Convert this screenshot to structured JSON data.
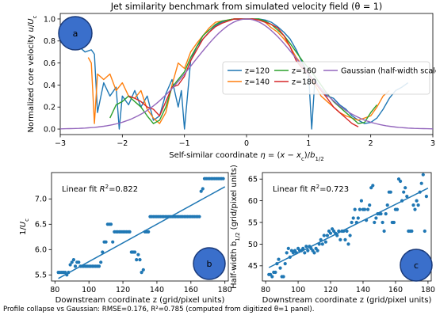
{
  "caption": "Profile collapse vs Gaussian: RMSE=0.176, R²=0.785 (computed from digitized θ=1 panel).",
  "colors": {
    "z120": "#1f77b4",
    "z140": "#ff7f0e",
    "z160": "#2ca02c",
    "z180": "#d62728",
    "gaussian": "#9467bd",
    "scatter": "#1f77b4",
    "badge_fill": "#3a6fcb",
    "badge_stroke": "#1a3a7a"
  },
  "chart_data": [
    {
      "type": "line",
      "title": "Jet similarity benchmark from simulated velocity field (θ = 1)",
      "xlabel": "Self-similar coordinate η = (x − x_c)/b_1/2",
      "ylabel": "Normalized core velocity u/U_c",
      "xlim": [
        -3.0,
        3.0
      ],
      "ylim": [
        -0.05,
        1.05
      ],
      "xticks": [
        "−3",
        "−2",
        "−1",
        "0",
        "1",
        "2",
        "3"
      ],
      "yticks": [
        "0.0",
        "0.2",
        "0.4",
        "0.6",
        "0.8",
        "1.0"
      ],
      "badge": "a",
      "legend": {
        "placement": "center-right",
        "entries": [
          "z=120",
          "z=140",
          "z=160",
          "z=180",
          "Gaussian (half-width scaled)"
        ]
      },
      "series": [
        {
          "name": "z=120",
          "color": "#1f77b4",
          "x": [
            -2.7,
            -2.6,
            -2.5,
            -2.45,
            -2.4,
            -2.3,
            -2.2,
            -2.1,
            -2.05,
            -2.0,
            -1.9,
            -1.8,
            -1.7,
            -1.6,
            -1.5,
            -1.4,
            -1.3,
            -1.2,
            -1.1,
            -1.05,
            -1.0,
            -0.9,
            -0.8,
            -0.7,
            -0.6,
            -0.5,
            -0.4,
            -0.3,
            -0.2,
            -0.1,
            0,
            0.1,
            0.2,
            0.3,
            0.4,
            0.5,
            0.6,
            0.7,
            0.8,
            0.9,
            1.0,
            1.05,
            1.1,
            1.2,
            1.3,
            1.4,
            1.5,
            1.6,
            1.7,
            1.8,
            1.9,
            2.0,
            2.1,
            2.2,
            2.3,
            2.4,
            2.5,
            2.6
          ],
          "y": [
            0.75,
            0.7,
            0.72,
            0.68,
            0.15,
            0.42,
            0.3,
            0.38,
            0.0,
            0.3,
            0.22,
            0.35,
            0.2,
            0.3,
            0.08,
            0.12,
            0.32,
            0.45,
            0.2,
            0.35,
            0.0,
            0.62,
            0.75,
            0.82,
            0.88,
            0.94,
            0.97,
            0.99,
            1.0,
            1.0,
            1.0,
            1.0,
            1.0,
            0.99,
            0.97,
            0.93,
            0.88,
            0.82,
            0.72,
            0.6,
            0.5,
            0.0,
            0.45,
            0.35,
            0.3,
            0.28,
            0.22,
            0.18,
            0.12,
            0.08,
            0.05,
            0.06,
            0.1,
            0.18,
            0.28,
            0.35,
            0.38,
            0.42
          ]
        },
        {
          "name": "z=140",
          "color": "#ff7f0e",
          "x": [
            -2.55,
            -2.5,
            -2.45,
            -2.4,
            -2.3,
            -2.2,
            -2.1,
            -2.0,
            -1.9,
            -1.8,
            -1.7,
            -1.6,
            -1.5,
            -1.4,
            -1.3,
            -1.2,
            -1.1,
            -1.0,
            -0.9,
            -0.8,
            -0.7,
            -0.6,
            -0.5,
            -0.4,
            -0.3,
            -0.2,
            -0.1,
            0,
            0.1,
            0.2,
            0.3,
            0.4,
            0.5,
            0.6,
            0.7,
            0.8,
            0.9,
            1.0,
            1.1,
            1.2,
            1.3,
            1.4,
            1.5,
            1.6,
            1.7,
            1.8,
            1.9,
            2.0,
            2.1,
            2.2,
            2.3
          ],
          "y": [
            0.65,
            0.6,
            0.05,
            0.5,
            0.45,
            0.5,
            0.35,
            0.42,
            0.3,
            0.28,
            0.35,
            0.18,
            0.1,
            0.05,
            0.15,
            0.4,
            0.6,
            0.55,
            0.7,
            0.78,
            0.85,
            0.92,
            0.97,
            0.98,
            0.99,
            1.0,
            1.0,
            1.0,
            1.0,
            0.99,
            0.97,
            0.92,
            0.88,
            0.82,
            0.75,
            0.65,
            0.58,
            0.5,
            0.4,
            0.3,
            0.25,
            0.2,
            0.15,
            0.12,
            0.1,
            0.08,
            0.1,
            0.12,
            0.2,
            0.3,
            0.35
          ]
        },
        {
          "name": "z=160",
          "color": "#2ca02c",
          "x": [
            -2.2,
            -2.1,
            -2.0,
            -1.9,
            -1.8,
            -1.7,
            -1.6,
            -1.5,
            -1.4,
            -1.3,
            -1.2,
            -1.1,
            -1.0,
            -0.9,
            -0.8,
            -0.7,
            -0.6,
            -0.5,
            -0.4,
            -0.3,
            -0.2,
            -0.1,
            0,
            0.1,
            0.2,
            0.3,
            0.4,
            0.5,
            0.6,
            0.7,
            0.8,
            0.9,
            1.0,
            1.1,
            1.2,
            1.3,
            1.4,
            1.5,
            1.6,
            1.7,
            1.8,
            1.9,
            2.0,
            2.1
          ],
          "y": [
            0.1,
            0.22,
            0.25,
            0.3,
            0.25,
            0.2,
            0.12,
            0.05,
            0.08,
            0.2,
            0.38,
            0.45,
            0.52,
            0.65,
            0.75,
            0.85,
            0.9,
            0.95,
            0.98,
            0.99,
            1.0,
            1.0,
            1.0,
            1.0,
            1.0,
            0.98,
            0.95,
            0.9,
            0.85,
            0.78,
            0.7,
            0.62,
            0.55,
            0.48,
            0.4,
            0.32,
            0.25,
            0.2,
            0.15,
            0.1,
            0.05,
            0.06,
            0.15,
            0.22
          ]
        },
        {
          "name": "z=180",
          "color": "#d62728",
          "x": [
            -1.9,
            -1.8,
            -1.7,
            -1.6,
            -1.5,
            -1.4,
            -1.3,
            -1.2,
            -1.1,
            -1.0,
            -0.9,
            -0.8,
            -0.7,
            -0.6,
            -0.5,
            -0.4,
            -0.3,
            -0.2,
            -0.1,
            0,
            0.1,
            0.2,
            0.3,
            0.4,
            0.5,
            0.6,
            0.7,
            0.8,
            0.9,
            1.0,
            1.1,
            1.2,
            1.3,
            1.4,
            1.5,
            1.6,
            1.7,
            1.8
          ],
          "y": [
            0.3,
            0.28,
            0.25,
            0.2,
            0.18,
            0.12,
            0.25,
            0.38,
            0.4,
            0.48,
            0.62,
            0.72,
            0.82,
            0.88,
            0.93,
            0.96,
            0.98,
            1.0,
            1.0,
            1.0,
            1.0,
            0.99,
            0.97,
            0.95,
            0.92,
            0.85,
            0.75,
            0.62,
            0.55,
            0.5,
            0.42,
            0.35,
            0.28,
            0.2,
            0.15,
            0.1,
            0.05,
            0.02
          ]
        },
        {
          "name": "Gaussian (half-width scaled)",
          "color": "#9467bd",
          "function": "gaussian"
        }
      ]
    },
    {
      "type": "scatter",
      "xlabel": "Downstream coordinate z (grid/pixel units)",
      "ylabel": "1/U_c",
      "xlim": [
        78,
        182
      ],
      "ylim": [
        5.38,
        7.52
      ],
      "xticks": [
        80,
        100,
        120,
        140,
        160,
        180
      ],
      "yticks": [
        "5.5",
        "6.0",
        "6.5",
        "7.0"
      ],
      "annotation": "Linear fit R²=0.822",
      "badge": "b",
      "fit": {
        "x": [
          82,
          180
        ],
        "y": [
          5.43,
          7.24
        ]
      },
      "x": [
        82,
        83,
        84,
        85,
        86,
        87,
        88,
        89,
        90,
        91,
        92,
        93,
        94,
        95,
        96,
        97,
        98,
        99,
        100,
        101,
        102,
        103,
        104,
        105,
        106,
        107,
        108,
        109,
        110,
        111,
        112,
        113,
        114,
        115,
        116,
        117,
        118,
        119,
        120,
        121,
        122,
        123,
        124,
        125,
        126,
        127,
        128,
        129,
        130,
        131,
        132,
        133,
        134,
        135,
        136,
        137,
        138,
        139,
        140,
        141,
        142,
        143,
        144,
        145,
        146,
        147,
        148,
        149,
        150,
        151,
        152,
        153,
        154,
        155,
        156,
        157,
        158,
        159,
        160,
        161,
        162,
        163,
        164,
        165,
        166,
        167,
        168,
        169,
        170,
        171,
        172,
        173,
        174,
        175,
        176,
        177,
        178,
        179
      ],
      "y": [
        5.55,
        5.55,
        5.55,
        5.55,
        5.55,
        5.5,
        5.55,
        5.7,
        5.75,
        5.8,
        5.67,
        5.75,
        5.75,
        5.67,
        5.67,
        5.67,
        5.67,
        5.67,
        5.67,
        5.67,
        5.67,
        5.67,
        5.67,
        5.67,
        5.67,
        5.75,
        5.95,
        6.15,
        6.15,
        6.5,
        6.5,
        6.5,
        6.15,
        6.35,
        6.35,
        6.35,
        6.35,
        6.35,
        6.35,
        6.35,
        6.35,
        6.35,
        6.35,
        5.95,
        5.95,
        5.95,
        5.8,
        5.9,
        5.8,
        5.55,
        5.6,
        6.35,
        6.35,
        6.35,
        6.65,
        6.65,
        6.65,
        6.65,
        6.65,
        6.65,
        6.65,
        6.65,
        6.65,
        6.65,
        6.65,
        6.65,
        6.65,
        6.65,
        6.65,
        6.65,
        6.65,
        6.65,
        6.65,
        6.65,
        6.65,
        6.65,
        6.65,
        6.65,
        6.65,
        6.65,
        6.65,
        6.65,
        6.65,
        6.65,
        7.15,
        7.2,
        7.4,
        7.4,
        7.4,
        7.4,
        7.4,
        7.4,
        7.4,
        7.4,
        7.4,
        7.4,
        7.4,
        7.4
      ]
    },
    {
      "type": "scatter",
      "xlabel": "Downstream coordinate z (grid/pixel units)",
      "ylabel": "Half-width b_1/2 (grid/pixel units)",
      "xlim": [
        78,
        182
      ],
      "ylim": [
        41.5,
        66.5
      ],
      "xticks": [
        80,
        100,
        120,
        140,
        160,
        180
      ],
      "yticks": [
        "45",
        "50",
        "55",
        "60",
        "65"
      ],
      "annotation": "Linear fit R²=0.723",
      "badge": "c",
      "fit": {
        "x": [
          82,
          180
        ],
        "y": [
          44.6,
          62.9
        ]
      },
      "x": [
        82,
        83,
        84,
        85,
        86,
        87,
        88,
        89,
        90,
        91,
        92,
        93,
        94,
        95,
        96,
        97,
        98,
        99,
        100,
        101,
        102,
        103,
        104,
        105,
        106,
        107,
        108,
        109,
        110,
        111,
        112,
        113,
        114,
        115,
        116,
        117,
        118,
        119,
        120,
        121,
        122,
        123,
        124,
        125,
        126,
        127,
        128,
        129,
        130,
        131,
        132,
        133,
        134,
        135,
        136,
        137,
        138,
        139,
        140,
        141,
        142,
        143,
        144,
        145,
        146,
        147,
        148,
        149,
        150,
        151,
        152,
        153,
        154,
        155,
        156,
        157,
        158,
        159,
        160,
        161,
        162,
        163,
        164,
        165,
        166,
        167,
        168,
        169,
        170,
        171,
        172,
        173,
        174,
        175,
        176,
        177,
        178,
        179
      ],
      "y": [
        43,
        43,
        42.5,
        43.5,
        43.5,
        45.5,
        46.5,
        44.5,
        42.5,
        42.5,
        45.5,
        48,
        49,
        47,
        48.5,
        48,
        48.5,
        48,
        49,
        48.5,
        48.5,
        49,
        48,
        49.5,
        48.5,
        49.5,
        49,
        48.5,
        48,
        49,
        48.5,
        50,
        51,
        50,
        52,
        50.5,
        52,
        53,
        52.5,
        53.5,
        53,
        52.5,
        52,
        53,
        51,
        53,
        53,
        51,
        53,
        50,
        52,
        55,
        56,
        58,
        55,
        56,
        58,
        60,
        58,
        58,
        55.5,
        58,
        59,
        63,
        63.5,
        55,
        56,
        57,
        57,
        57,
        55,
        53,
        57,
        59,
        62,
        62,
        55,
        55,
        58,
        58,
        65,
        64.5,
        60,
        62,
        63,
        61,
        53,
        53,
        53,
        59,
        58,
        60,
        59,
        62,
        64,
        66,
        53,
        61
      ]
    }
  ]
}
